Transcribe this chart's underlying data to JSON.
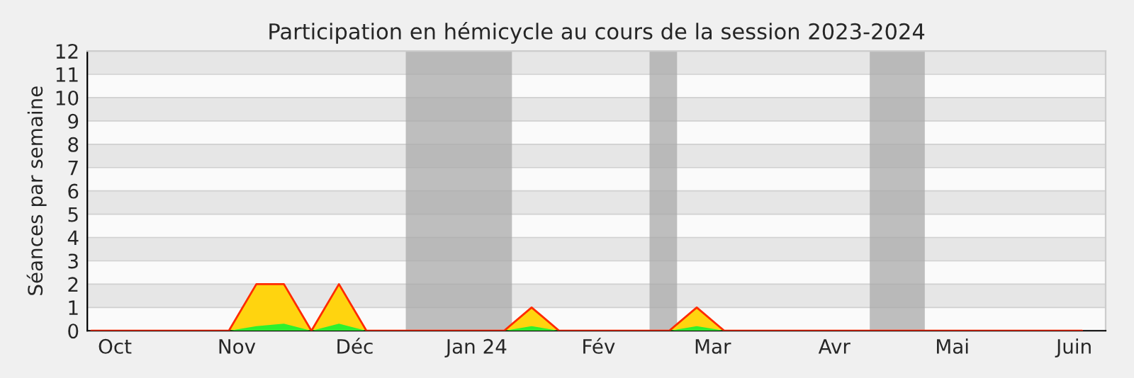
{
  "chart_data": {
    "type": "area",
    "title": "Participation en hémicycle au cours de la session 2023-2024",
    "ylabel": "Séances par semaine",
    "x": [
      "2023-09-25",
      "2023-10-02",
      "2023-10-09",
      "2023-10-16",
      "2023-10-23",
      "2023-10-30",
      "2023-11-06",
      "2023-11-13",
      "2023-11-20",
      "2023-11-27",
      "2023-12-04",
      "2023-12-11",
      "2023-12-18",
      "2023-12-25",
      "2024-01-01",
      "2024-01-08",
      "2024-01-15",
      "2024-01-22",
      "2024-01-29",
      "2024-02-05",
      "2024-02-12",
      "2024-02-19",
      "2024-02-26",
      "2024-03-04",
      "2024-03-11",
      "2024-03-18",
      "2024-03-25",
      "2024-04-01",
      "2024-04-08",
      "2024-04-15",
      "2024-04-22",
      "2024-04-29",
      "2024-05-06",
      "2024-05-13",
      "2024-05-20",
      "2024-05-27",
      "2024-06-03"
    ],
    "series": [
      {
        "color": "#ffd40f",
        "values": [
          0,
          0,
          0,
          0,
          0,
          0,
          2,
          2,
          0,
          2,
          0,
          0,
          0,
          0,
          0,
          0,
          1,
          0,
          0,
          0,
          0,
          0,
          1,
          0,
          0,
          0,
          0,
          0,
          0,
          0,
          0,
          0,
          0,
          0,
          0,
          0,
          0
        ]
      },
      {
        "color": "#2ef02e",
        "values": [
          0,
          0,
          0,
          0,
          0,
          0,
          0.2,
          0.3,
          0,
          0.3,
          0,
          0,
          0,
          0,
          0,
          0,
          0.2,
          0,
          0,
          0,
          0,
          0,
          0.2,
          0,
          0,
          0,
          0,
          0,
          0,
          0,
          0,
          0,
          0,
          0,
          0,
          0,
          0
        ]
      }
    ],
    "bands": [
      {
        "axis": "x",
        "from": "2023-12-14",
        "to": "2024-01-10",
        "color": "#aaaaaa"
      },
      {
        "axis": "x",
        "from": "2024-02-14",
        "to": "2024-02-21",
        "color": "#aaaaaa"
      },
      {
        "axis": "x",
        "from": "2024-04-10",
        "to": "2024-04-24",
        "color": "#aaaaaa"
      }
    ],
    "xlim": [
      "2023-09-24",
      "2024-06-09"
    ],
    "xticks": [
      {
        "value": "2023-10-01",
        "label": "Oct"
      },
      {
        "value": "2023-11-01",
        "label": "Nov"
      },
      {
        "value": "2023-12-01",
        "label": "Déc"
      },
      {
        "value": "2024-01-01",
        "label": "Jan 24"
      },
      {
        "value": "2024-02-01",
        "label": "Fév"
      },
      {
        "value": "2024-03-01",
        "label": "Mar"
      },
      {
        "value": "2024-04-01",
        "label": "Avr"
      },
      {
        "value": "2024-05-01",
        "label": "Mai"
      },
      {
        "value": "2024-06-01",
        "label": "Juin"
      }
    ],
    "ylim": [
      0,
      12
    ],
    "yticks": [
      0,
      1,
      2,
      3,
      4,
      5,
      6,
      7,
      8,
      9,
      10,
      11,
      12
    ],
    "grid": "y"
  }
}
